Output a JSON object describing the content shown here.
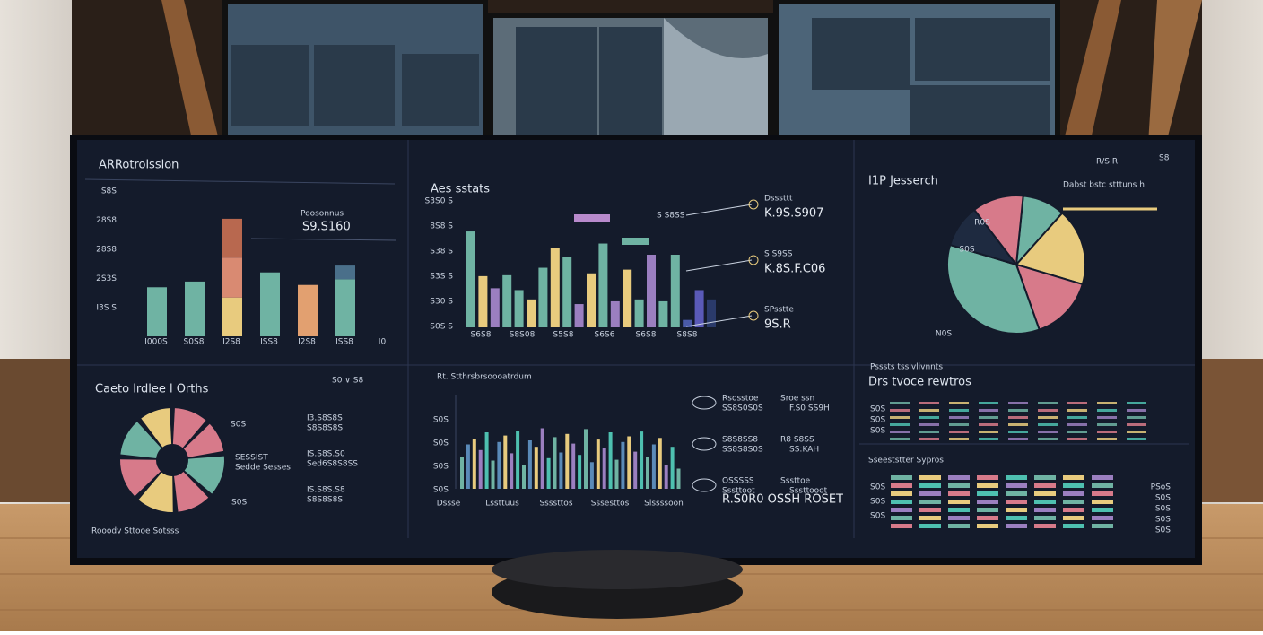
{
  "top_left": {
    "title": "ARRotroission",
    "yticks": [
      "S8S",
      "28S8",
      "28S8",
      "2S3S",
      "I3S S"
    ],
    "note": "Poosonnus",
    "note_value": "S9.S160",
    "categories": [
      "I000S",
      "S0S8",
      "I2S8",
      "ISS8",
      "I2S8",
      "ISS8",
      "I0"
    ],
    "ylim": [
      0,
      110
    ],
    "bars": [
      [
        {
          "value": 43,
          "color": "#6fb3a3"
        }
      ],
      [
        {
          "value": 48,
          "color": "#6fb3a3"
        }
      ],
      [
        {
          "value": 34,
          "color": "#e8cb7e"
        },
        {
          "value": 35,
          "color": "#d98a72"
        },
        {
          "value": 34,
          "color": "#b8684f"
        }
      ],
      [
        {
          "value": 56,
          "color": "#6fb3a3"
        }
      ],
      [
        {
          "value": 45,
          "color": "#e2a070"
        }
      ],
      [
        {
          "value": 50,
          "color": "#6fb3a3"
        },
        {
          "value": 12,
          "color": "#4a6f8a"
        }
      ]
    ]
  },
  "top_middle": {
    "title": "Aes sstats",
    "yticks": [
      "S3S0 S",
      "8S8 S",
      "S38 S",
      "S3S S",
      "S30 S",
      "S0S S"
    ],
    "categories": [
      "S6S8",
      "S8S08",
      "S5S8",
      "S6S6",
      "S6S8",
      "S8S8"
    ],
    "ylim": [
      0,
      130
    ],
    "bars": [
      {
        "value": 103,
        "color": "#6fb3a3"
      },
      {
        "value": 55,
        "color": "#e8cb7e"
      },
      {
        "value": 42,
        "color": "#9b7fc0"
      },
      {
        "value": 56,
        "color": "#6fb3a3"
      },
      {
        "value": 40,
        "color": "#6fb3a3"
      },
      {
        "value": 30,
        "color": "#e8cb7e"
      },
      {
        "value": 64,
        "color": "#6fb3a3"
      },
      {
        "value": 85,
        "color": "#e8cb7e"
      },
      {
        "value": 76,
        "color": "#6fb3a3"
      },
      {
        "value": 25,
        "color": "#9b7fc0"
      },
      {
        "value": 58,
        "color": "#e8cb7e"
      },
      {
        "value": 90,
        "color": "#6fb3a3"
      },
      {
        "value": 28,
        "color": "#9b7fc0"
      },
      {
        "value": 62,
        "color": "#e8cb7e"
      },
      {
        "value": 30,
        "color": "#6fb3a3"
      },
      {
        "value": 78,
        "color": "#9b7fc0"
      },
      {
        "value": 28,
        "color": "#6fb3a3"
      },
      {
        "value": 78,
        "color": "#6fb3a3"
      },
      {
        "value": 8,
        "color": "#4a5aa8"
      },
      {
        "value": 40,
        "color": "#5a5ab8"
      },
      {
        "value": 30,
        "color": "#2a3a6a"
      }
    ],
    "callout_label": "S S8SS",
    "callouts": [
      {
        "title": "Dsssttt",
        "value": "K.9S.S907"
      },
      {
        "title": "S S9SS",
        "value": "K.8S.F.C06"
      },
      {
        "title": "SPsstte",
        "value": "9S.R"
      }
    ]
  },
  "top_right": {
    "title": "I1P Jesserch",
    "icons": "R/S R",
    "icon2": "S8",
    "dropdown": "Dabst bstc stttuns h",
    "slices": [
      {
        "value": 10,
        "color": "#6fb3a3"
      },
      {
        "value": 18,
        "color": "#e8cb7e"
      },
      {
        "value": 15,
        "color": "#d77a8a"
      },
      {
        "value": 35,
        "color": "#6fb3a3"
      },
      {
        "value": 10,
        "color": "#1e2a40"
      },
      {
        "value": 12,
        "color": "#d77a8a"
      }
    ],
    "slice_labels": [
      "R0S",
      "S0S"
    ],
    "footnote": "N0S"
  },
  "bottom_left": {
    "title": "Caeto lrdlee l Orths",
    "controls": "S0 ∨ S8",
    "segments": [
      {
        "value": 12,
        "color": "#d77a8a"
      },
      {
        "value": 11,
        "color": "#d77a8a"
      },
      {
        "value": 14,
        "color": "#6fb3a3"
      },
      {
        "value": 12,
        "color": "#d77a8a"
      },
      {
        "value": 13,
        "color": "#e8cb7e"
      },
      {
        "value": 14,
        "color": "#d77a8a"
      },
      {
        "value": 13,
        "color": "#6fb3a3"
      },
      {
        "value": 11,
        "color": "#e8cb7e"
      }
    ],
    "side_labels": [
      "S0S",
      "SESSIST",
      "Sedde Sesses",
      "S0S"
    ],
    "rows": [
      {
        "title": "I3.S8S8S",
        "sub": "S8S8S8S"
      },
      {
        "title": "IS.S8S.S0",
        "sub": "Sed6S8S8SS"
      },
      {
        "title": "IS.S8S.S8",
        "sub": "S8S8S8S"
      }
    ],
    "footer": "Rooodv Sttooe Sotsss"
  },
  "bottom_middle": {
    "title": "Rt. Stthrsbrsoooatrdum",
    "yticks": [
      "S0S",
      "S0S",
      "S0S",
      "S0S"
    ],
    "ylim": [
      0,
      100
    ],
    "values": [
      40,
      55,
      62,
      48,
      70,
      35,
      58,
      66,
      44,
      72,
      30,
      60,
      52,
      75,
      38,
      64,
      45,
      68,
      56,
      42,
      74,
      33,
      61,
      50,
      70,
      36,
      58,
      65,
      46,
      71,
      40,
      55,
      63,
      30,
      52,
      25
    ],
    "categories": [
      "Dssse",
      "Lssttuus",
      "Ssssttos",
      "Sssesttos",
      "Slssssoon"
    ],
    "rows": [
      {
        "title": "Rsosstoe",
        "sub": "SS8S0S0S",
        "right": "Sroe ssn",
        "right_sub": "F.S0 SS9H"
      },
      {
        "title": "S8S8SS8",
        "sub": "SS8S8S0S",
        "right": "R8 S8SS",
        "right_sub": "SS:KAH"
      },
      {
        "title": "OSSSSS",
        "sub": "Sssttoot",
        "right": "Sssttoe",
        "right_sub": "Sssttooot"
      }
    ],
    "footer": "R.S0R0 OSSH ROSET"
  },
  "bottom_right": {
    "title": "Psssts tsslvlivnnts",
    "subtitle": "Drs tvoce rewtros",
    "row_labels": [
      "S0S",
      "S0S",
      "S0S"
    ],
    "lower_title": "Sseeststter Sypros",
    "lower_labels": [
      "S0S",
      "S0S",
      "S0S"
    ],
    "right_labels": [
      "PSoS",
      "S0S",
      "S0S",
      "S0S",
      "S0S"
    ]
  }
}
